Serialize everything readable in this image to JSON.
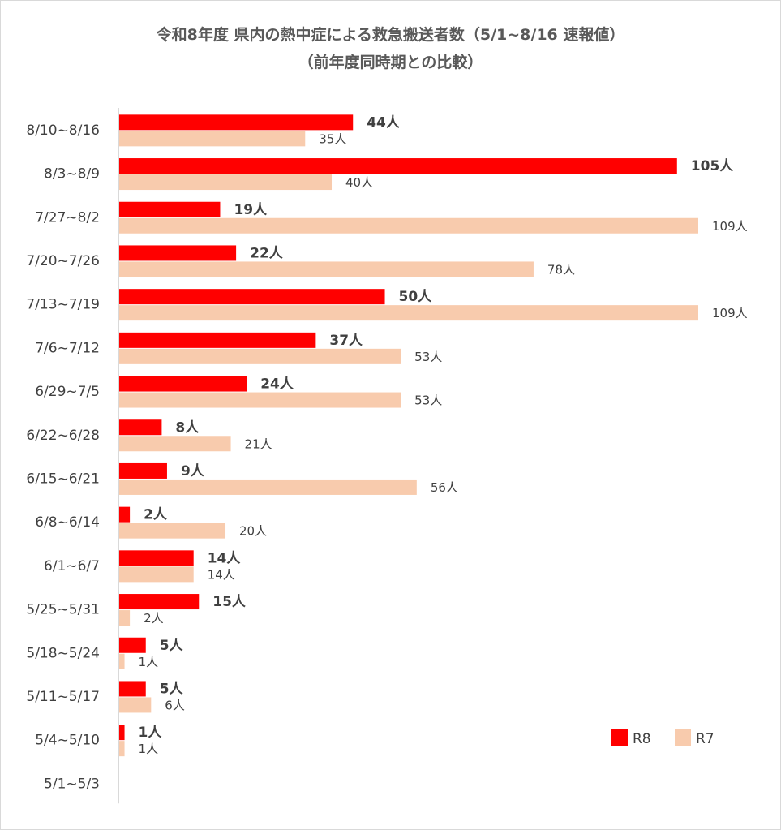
{
  "title": {
    "line1": "令和8年度 県内の熱中症による救急搬送者数（5/1~8/16 速報値）",
    "line2": "（前年度同時期との比較）"
  },
  "colors": {
    "r8": "#ff0000",
    "r7": "#f8cbad",
    "axis": "#d9d9d9",
    "text": "#404040",
    "title": "#595959"
  },
  "chart_data": {
    "type": "bar",
    "orientation": "horizontal",
    "unit_suffix": "人",
    "categories": [
      "8/10~8/16",
      "8/3~8/9",
      "7/27~8/2",
      "7/20~7/26",
      "7/13~7/19",
      "7/6~7/12",
      "6/29~7/5",
      "6/22~6/28",
      "6/15~6/21",
      "6/8~6/14",
      "6/1~6/7",
      "5/25~5/31",
      "5/18~5/24",
      "5/11~5/17",
      "5/4~5/10",
      "5/1~5/3"
    ],
    "series": [
      {
        "name": "R8",
        "values": [
          44,
          105,
          19,
          22,
          50,
          37,
          24,
          8,
          9,
          2,
          14,
          15,
          5,
          5,
          1,
          null
        ]
      },
      {
        "name": "R7",
        "values": [
          35,
          40,
          109,
          78,
          109,
          53,
          53,
          21,
          56,
          20,
          14,
          2,
          1,
          6,
          1,
          null
        ]
      }
    ],
    "xlim": [
      0,
      109
    ],
    "grid": false,
    "legend": "bottom-right"
  }
}
